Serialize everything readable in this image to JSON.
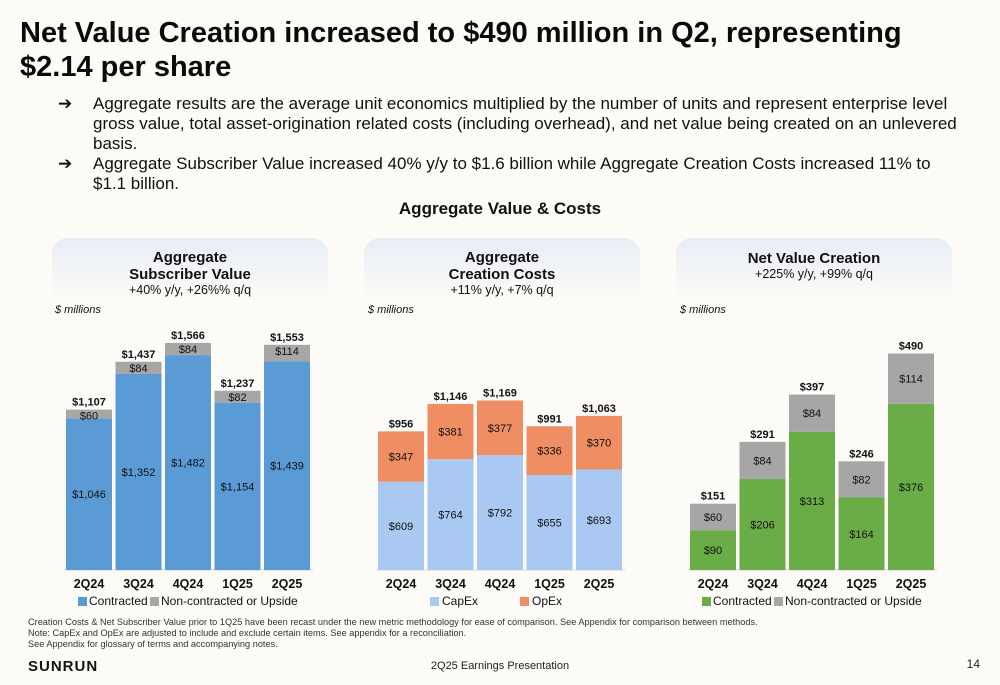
{
  "title": "Net Value Creation increased to $490 million in Q2, representing $2.14 per share",
  "bullets": [
    {
      "arrow": "➔",
      "text": "Aggregate results are the average unit economics multiplied by the number of units and represent enterprise level gross value, total asset-origination related costs (including overhead), and net value being created on an unlevered basis."
    },
    {
      "arrow": "➔",
      "text": "Aggregate Subscriber Value increased 40% y/y to $1.6 billion while Aggregate Creation Costs increased 11% to $1.1 billion."
    }
  ],
  "section_title": "Aggregate Value & Costs",
  "panels": [
    {
      "heading_l1": "Aggregate",
      "heading_l2": "Subscriber Value",
      "sub": "+40% y/y, +26%% q/q",
      "units": "$ millions"
    },
    {
      "heading_l1": "Aggregate",
      "heading_l2": "Creation Costs",
      "sub": "+11% y/y, +7% q/q",
      "units": "$ millions"
    },
    {
      "heading_l1": "Net Value Creation",
      "heading_l2": "",
      "sub": "+225% y/y, +99% q/q",
      "units": "$ millions"
    }
  ],
  "chart_data": [
    {
      "type": "bar",
      "stacked": true,
      "categories": [
        "2Q24",
        "3Q24",
        "4Q24",
        "1Q25",
        "2Q25"
      ],
      "series": [
        {
          "name": "Contracted",
          "values": [
            1046,
            1352,
            1482,
            1154,
            1439
          ],
          "labels": [
            "$1,046",
            "$1,352",
            "$1,482",
            "$1,154",
            "$1,439"
          ],
          "color": "#5b9bd5"
        },
        {
          "name": "Non-contracted or Upside",
          "values": [
            60,
            84,
            84,
            82,
            114
          ],
          "labels": [
            "$60",
            "$84",
            "$84",
            "$82",
            "$114"
          ],
          "color": "#a6a6a6"
        }
      ],
      "totals": [
        "$1,107",
        "$1,437",
        "$1,566",
        "$1,237",
        "$1,553"
      ],
      "ylim": [
        0,
        1600
      ],
      "legend_position": "bottom"
    },
    {
      "type": "bar",
      "stacked": true,
      "categories": [
        "2Q24",
        "3Q24",
        "4Q24",
        "1Q25",
        "2Q25"
      ],
      "series": [
        {
          "name": "CapEx",
          "values": [
            609,
            764,
            792,
            655,
            693
          ],
          "labels": [
            "$609",
            "$764",
            "$792",
            "$655",
            "$693"
          ],
          "color": "#a9c9f2"
        },
        {
          "name": "OpEx",
          "values": [
            347,
            381,
            377,
            336,
            370
          ],
          "labels": [
            "$347",
            "$381",
            "$377",
            "$336",
            "$370"
          ],
          "color": "#ef8d63"
        }
      ],
      "totals": [
        "$956",
        "$1,146",
        "$1,169",
        "$991",
        "$1,063"
      ],
      "ylim": [
        0,
        1600
      ],
      "legend_position": "bottom"
    },
    {
      "type": "bar",
      "stacked": true,
      "categories": [
        "2Q24",
        "3Q24",
        "4Q24",
        "1Q25",
        "2Q25"
      ],
      "series": [
        {
          "name": "Contracted",
          "values": [
            90,
            206,
            313,
            164,
            376
          ],
          "labels": [
            "$90",
            "$206",
            "$313",
            "$164",
            "$376"
          ],
          "color": "#6aad46"
        },
        {
          "name": "Non-contracted or Upside",
          "values": [
            60,
            84,
            84,
            82,
            114
          ],
          "labels": [
            "$60",
            "$84",
            "$84",
            "$82",
            "$114"
          ],
          "color": "#a6a6a6"
        }
      ],
      "totals": [
        "$151",
        "$291",
        "$397",
        "$246",
        "$490"
      ],
      "ylim": [
        0,
        525
      ],
      "legend_position": "bottom"
    }
  ],
  "footnotes": [
    "Creation Costs & Net Subscriber Value prior to 1Q25 have been recast under the new metric methodology for ease of comparison.  See Appendix for comparison between methods.",
    "Note:  CapEx and OpEx are adjusted to include and exclude certain items.  See appendix for a reconciliation.",
    "See Appendix for glossary of terms and accompanying notes."
  ],
  "logo": "SUNRUN",
  "presentation": "2Q25 Earnings Presentation",
  "page_number": "14"
}
